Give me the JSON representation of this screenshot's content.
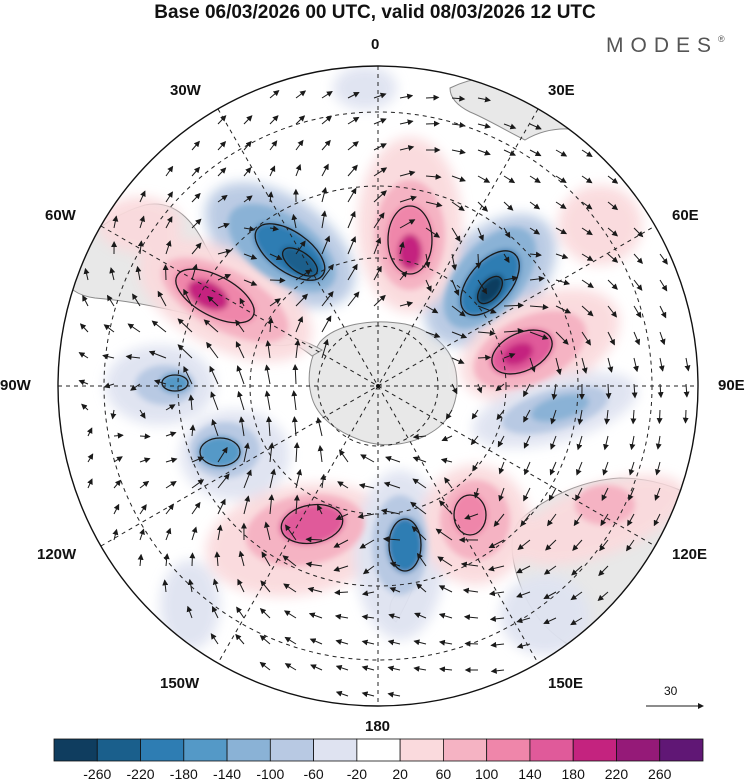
{
  "title": "Base 06/03/2026 00 UTC, valid 08/03/2026 12 UTC",
  "brand": "MODES",
  "brand_mark": "®",
  "map": {
    "projection": "south polar stereographic",
    "longitude_labels": [
      "0",
      "30E",
      "60E",
      "90E",
      "120E",
      "150E",
      "180",
      "150W",
      "120W",
      "90W",
      "60W",
      "30W"
    ],
    "vector_scale_label": "30",
    "colors": {
      "land": "#e8e8e8",
      "coast": "#8a8a8a",
      "grid": "#222222",
      "arrow": "#1a1a1a"
    }
  },
  "colorbar": {
    "labels": [
      "-260",
      "-220",
      "-180",
      "-140",
      "-100",
      "-60",
      "-20",
      "20",
      "60",
      "100",
      "140",
      "180",
      "220",
      "260"
    ],
    "colors": [
      "#0f3d5f",
      "#1a5f8c",
      "#2e7db3",
      "#5499c7",
      "#8ab2d6",
      "#b8c9e3",
      "#dfe3f1",
      "#ffffff",
      "#fadadd",
      "#f5b3c3",
      "#ef86aa",
      "#e05a9a",
      "#c4237f",
      "#951a78",
      "#601775"
    ]
  }
}
